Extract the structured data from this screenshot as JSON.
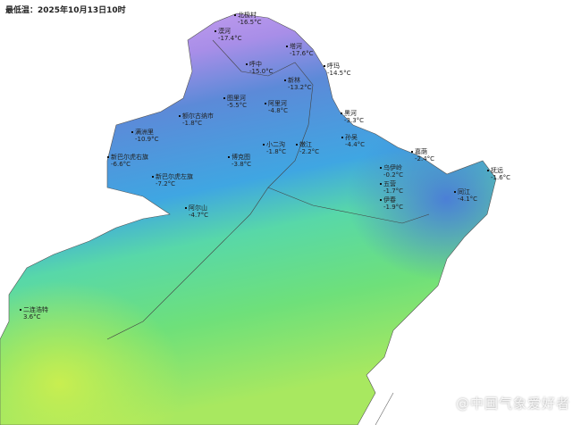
{
  "title": "最低温：2025年10月13日10时",
  "colors": {
    "cold": "#c9a0f0",
    "cool": "#5b8fdc",
    "mild": "#3bb8e0",
    "warm": "#44dd88",
    "warmer": "#b8e860"
  },
  "stations": [
    {
      "name": "北极村",
      "temp": "-16.5°C"
    },
    {
      "name": "漠河",
      "temp": "-17.4°C"
    },
    {
      "name": "塔河",
      "temp": "-17.6°C"
    },
    {
      "name": "呼中",
      "temp": "-15.0°C"
    },
    {
      "name": "新林",
      "temp": "-13.2°C"
    },
    {
      "name": "呼玛",
      "temp": "-14.5°C"
    },
    {
      "name": "图里河",
      "temp": "-5.5°C"
    },
    {
      "name": "阿里河",
      "temp": "-4.8°C"
    },
    {
      "name": "额尔古纳市",
      "temp": "-1.8°C"
    },
    {
      "name": "满洲里",
      "temp": "-10.9°C"
    },
    {
      "name": "新巴尔虎右旗",
      "temp": "-6.6°C"
    },
    {
      "name": "新巴尔虎左旗",
      "temp": "-7.2°C"
    },
    {
      "name": "博克图",
      "temp": "-3.8°C"
    },
    {
      "name": "小二沟",
      "temp": "-1.8°C"
    },
    {
      "name": "嫩江",
      "temp": "-2.2°C"
    },
    {
      "name": "阿尔山",
      "temp": "-4.7°C"
    },
    {
      "name": "黑河",
      "temp": "-3.3°C"
    },
    {
      "name": "孙吴",
      "temp": "-4.4°C"
    },
    {
      "name": "嘉荫",
      "temp": "-2.4°C"
    },
    {
      "name": "乌伊岭",
      "temp": "-0.2°C"
    },
    {
      "name": "五营",
      "temp": "-1.7°C"
    },
    {
      "name": "伊春",
      "temp": "-1.9°C"
    },
    {
      "name": "抚远",
      "temp": "-1.6°C"
    },
    {
      "name": "同江",
      "temp": "-4.1°C"
    },
    {
      "name": "二连浩特",
      "temp": "3.6°C"
    }
  ],
  "watermark": "@中国气象爱好者"
}
